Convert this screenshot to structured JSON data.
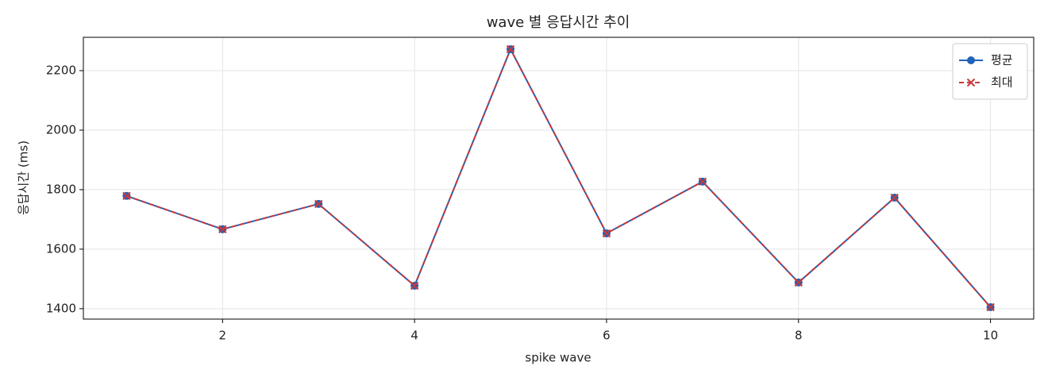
{
  "chart_data": {
    "type": "line",
    "title": "wave 별 응답시간 추이",
    "xlabel": "spike wave",
    "ylabel": "응답시간 (ms)",
    "x": [
      1,
      2,
      3,
      4,
      5,
      6,
      7,
      8,
      9,
      10
    ],
    "series": [
      {
        "name": "평균",
        "color": "#1f63b8",
        "marker": "circle",
        "dash": false,
        "values": [
          1779,
          1667,
          1752,
          1477,
          2272,
          1653,
          1827,
          1488,
          1773,
          1405
        ]
      },
      {
        "name": "최대",
        "color": "#c8383a",
        "marker": "x",
        "dash": true,
        "values": [
          1779,
          1667,
          1752,
          1477,
          2272,
          1653,
          1827,
          1488,
          1773,
          1405
        ]
      }
    ],
    "xlim": [
      0.55,
      10.45
    ],
    "ylim": [
      1365,
      2312
    ],
    "xticks": [
      2,
      4,
      6,
      8,
      10
    ],
    "yticks": [
      1400,
      1600,
      1800,
      2000,
      2200
    ],
    "grid": true,
    "legend": "upper right"
  }
}
